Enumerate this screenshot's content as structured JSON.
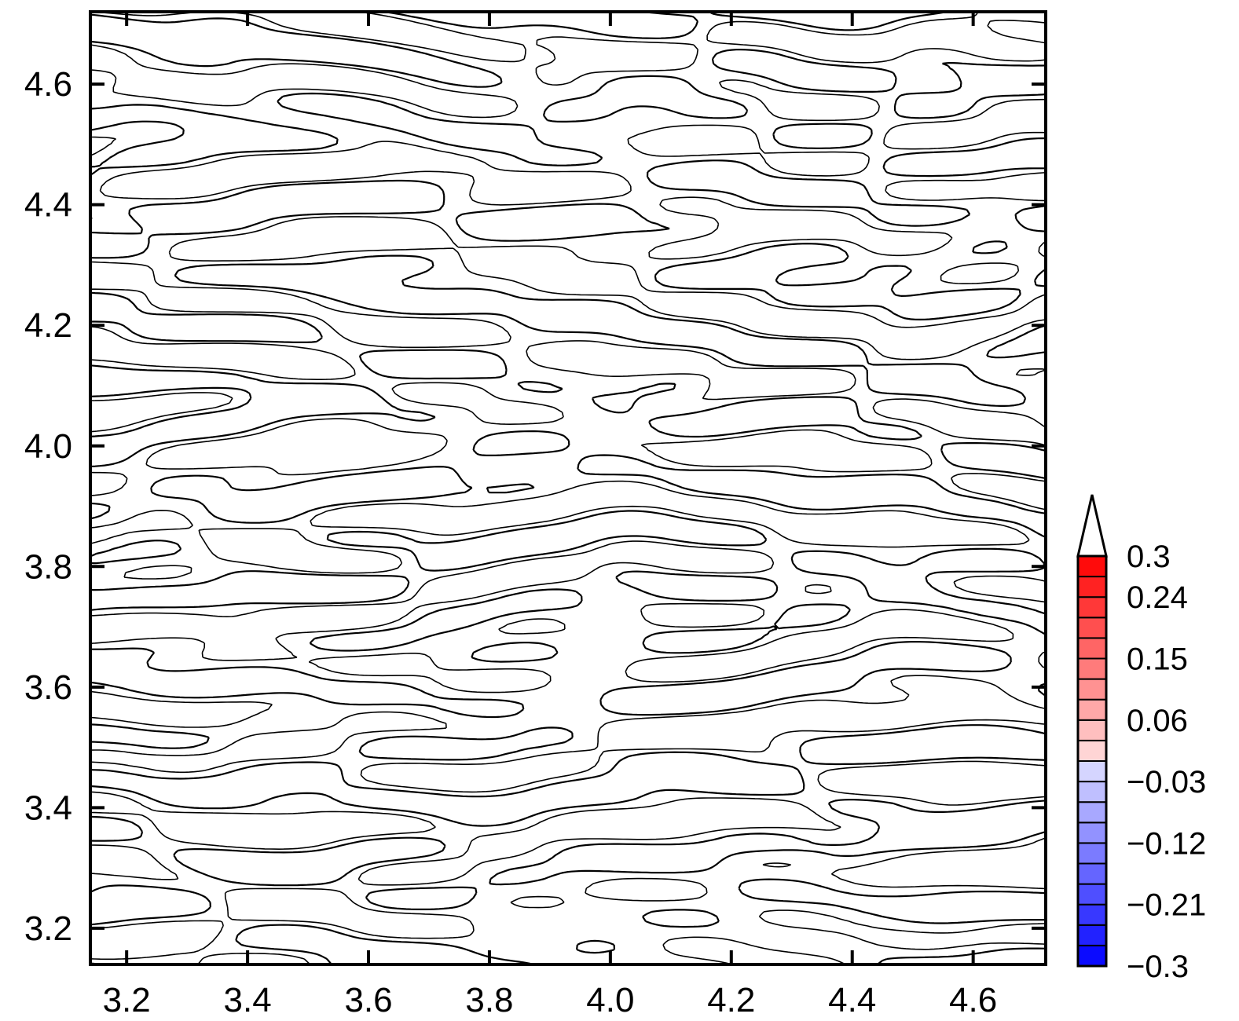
{
  "chart_data": {
    "type": "contour",
    "title": "",
    "xlabel": "",
    "ylabel": "",
    "xlim": [
      3.14,
      4.72
    ],
    "ylim": [
      3.14,
      4.72
    ],
    "x_ticks": [
      {
        "value": 3.2,
        "label": "3.2"
      },
      {
        "value": 3.4,
        "label": "3.4"
      },
      {
        "value": 3.6,
        "label": "3.6"
      },
      {
        "value": 3.8,
        "label": "3.8"
      },
      {
        "value": 4.0,
        "label": "4.0"
      },
      {
        "value": 4.2,
        "label": "4.2"
      },
      {
        "value": 4.4,
        "label": "4.4"
      },
      {
        "value": 4.6,
        "label": "4.6"
      }
    ],
    "y_ticks": [
      {
        "value": 3.2,
        "label": "3.2"
      },
      {
        "value": 3.4,
        "label": "3.4"
      },
      {
        "value": 3.6,
        "label": "3.6"
      },
      {
        "value": 3.8,
        "label": "3.8"
      },
      {
        "value": 4.0,
        "label": "4.0"
      },
      {
        "value": 4.2,
        "label": "4.2"
      },
      {
        "value": 4.4,
        "label": "4.4"
      },
      {
        "value": 4.6,
        "label": "4.6"
      }
    ],
    "contour_style": {
      "positive": "solid",
      "negative": "dashed",
      "color": "#000000"
    },
    "field": {
      "description_pattern": "zonally elongated small-scale cells",
      "mean": 0
    },
    "colorbar": {
      "min": -0.3,
      "max": 0.3,
      "extend": "max",
      "levels": [
        -0.3,
        -0.27,
        -0.24,
        -0.21,
        -0.18,
        -0.15,
        -0.12,
        -0.09,
        -0.06,
        -0.03,
        0.0,
        0.03,
        0.06,
        0.09,
        0.12,
        0.15,
        0.18,
        0.21,
        0.24,
        0.27,
        0.3
      ],
      "tick_labels": [
        {
          "value": 0.3,
          "label": "0.3"
        },
        {
          "value": 0.24,
          "label": "0.24"
        },
        {
          "value": 0.15,
          "label": "0.15"
        },
        {
          "value": 0.06,
          "label": "0.06"
        },
        {
          "value": -0.03,
          "label": "−0.03"
        },
        {
          "value": -0.12,
          "label": "−0.12"
        },
        {
          "value": -0.21,
          "label": "−0.21"
        },
        {
          "value": -0.3,
          "label": "−0.3"
        }
      ],
      "low_color": "#0000ff",
      "high_color": "#ff0000",
      "mid_color": "#ffffff"
    }
  }
}
